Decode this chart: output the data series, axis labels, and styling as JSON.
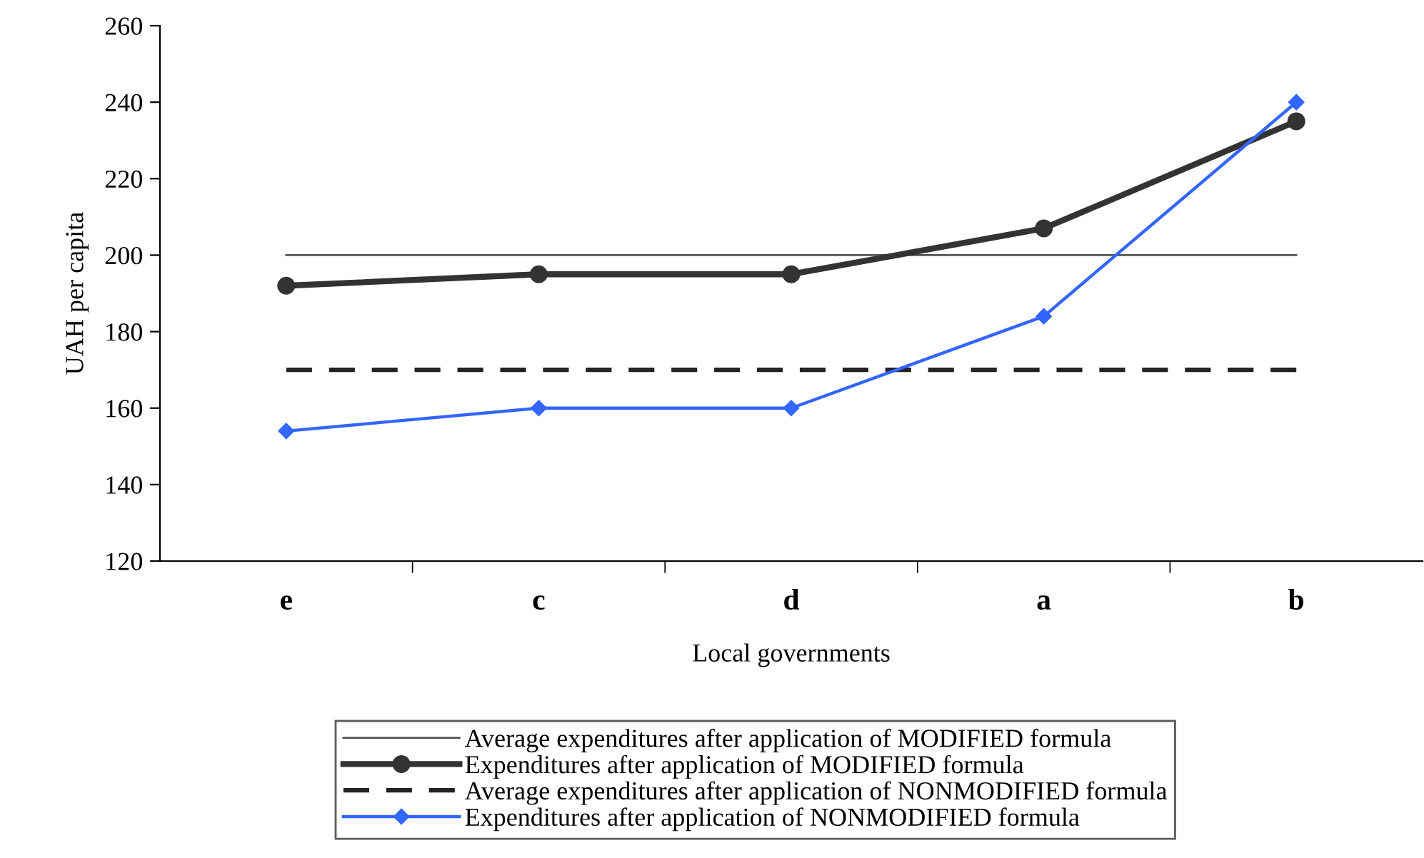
{
  "chart_data": {
    "type": "line",
    "xlabel": "Local governments",
    "ylabel": "UAH per capita",
    "categories": [
      "e",
      "c",
      "d",
      "a",
      "b"
    ],
    "series": [
      {
        "name": "Average expenditures after application of MODIFIED formula",
        "color": "#555555",
        "values": [
          200,
          200,
          200,
          200,
          200
        ],
        "marker": "none",
        "line_style": "solid"
      },
      {
        "name": "Expenditures after application of MODIFIED formula",
        "color": "#333333",
        "values": [
          192,
          195,
          195,
          207,
          235
        ],
        "marker": "circle",
        "line_style": "solid"
      },
      {
        "name": "Average expenditures after application of NONMODIFIED formula",
        "color": "#222222",
        "values": [
          170,
          170,
          170,
          170,
          170
        ],
        "marker": "none",
        "line_style": "dashed"
      },
      {
        "name": "Expenditures after application of NONMODIFIED formula",
        "color": "#3366ff",
        "values": [
          154,
          160,
          160,
          184,
          240
        ],
        "marker": "diamond",
        "line_style": "solid"
      }
    ],
    "ylim": [
      120,
      260
    ],
    "yticks": [
      120,
      140,
      160,
      180,
      200,
      220,
      240,
      260
    ],
    "grid": false,
    "legend": "bottom"
  }
}
